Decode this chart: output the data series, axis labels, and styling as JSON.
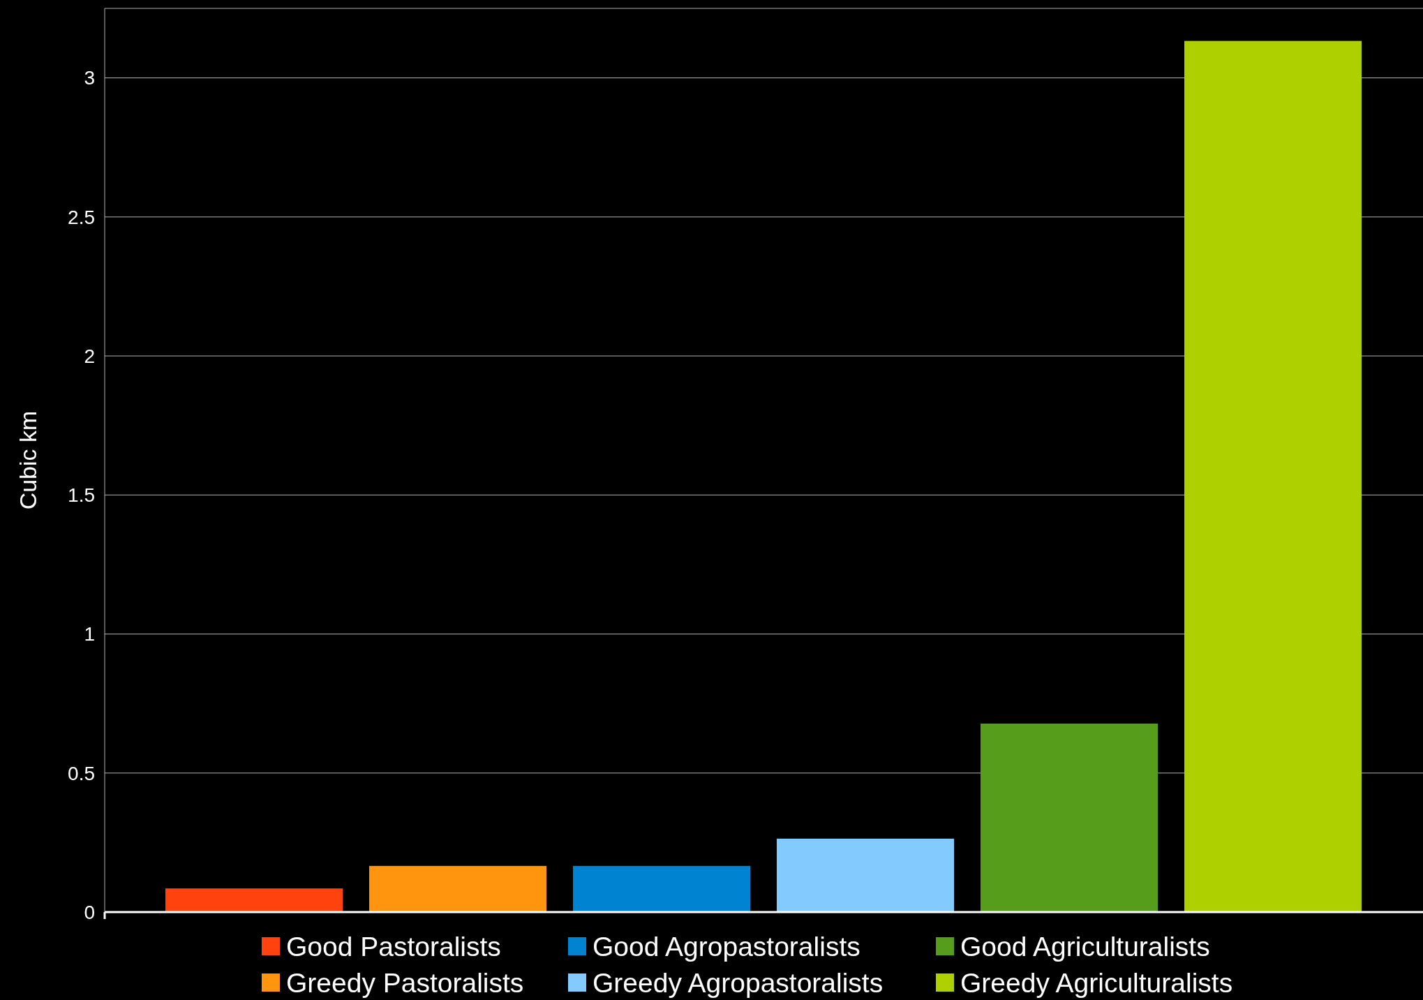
{
  "chart_data": {
    "type": "bar",
    "ylabel": "Cubic km",
    "categories": [
      null,
      null,
      null,
      null,
      null,
      null
    ],
    "series": [
      {
        "name": "Good Pastoralists",
        "color": "#ff420e",
        "values": [
          0.085,
          null,
          null,
          null,
          null,
          null
        ]
      },
      {
        "name": "Greedy Pastoralists",
        "color": "#ff950e",
        "values": [
          null,
          0.166,
          null,
          null,
          null,
          null
        ]
      },
      {
        "name": "Good Agropastoralists",
        "color": "#0084d1",
        "values": [
          null,
          null,
          0.166,
          null,
          null,
          null
        ]
      },
      {
        "name": "Greedy Agropastoralists",
        "color": "#83caff",
        "values": [
          null,
          null,
          null,
          0.264,
          null,
          null
        ]
      },
      {
        "name": "Good Agriculturalists",
        "color": "#579d1c",
        "values": [
          null,
          null,
          null,
          null,
          0.678,
          null
        ]
      },
      {
        "name": "Greedy Agriculturalists",
        "color": "#aecf00",
        "values": [
          null,
          null,
          null,
          null,
          null,
          3.133
        ]
      }
    ],
    "ylim": [
      0,
      3.25
    ],
    "yticks": [
      0,
      0.5,
      1,
      1.5,
      2,
      2.5,
      3
    ],
    "grid": "y",
    "legend": "bottom"
  }
}
